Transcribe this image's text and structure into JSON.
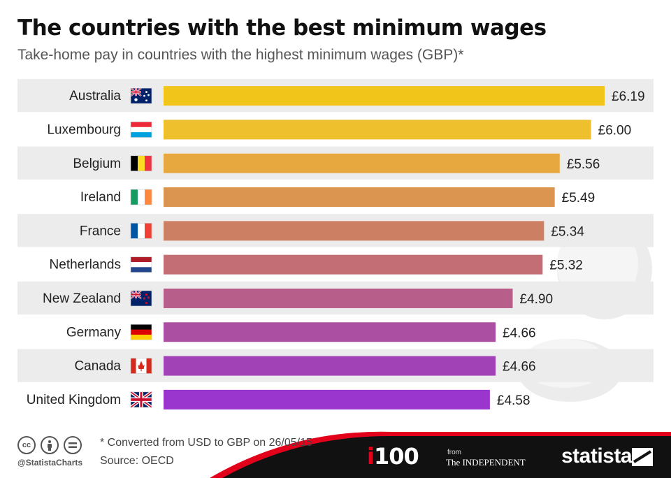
{
  "title": "The countries with the best minimum wages",
  "subtitle": "Take-home pay in countries with the highest minimum wages (GBP)*",
  "chart_data": {
    "type": "bar",
    "orientation": "horizontal",
    "categories": [
      "Australia",
      "Luxembourg",
      "Belgium",
      "Ireland",
      "France",
      "Netherlands",
      "New Zealand",
      "Germany",
      "Canada",
      "United Kingdom"
    ],
    "values": [
      6.19,
      6.0,
      5.56,
      5.49,
      5.34,
      5.32,
      4.9,
      4.66,
      4.66,
      4.58
    ],
    "value_labels": [
      "£6.19",
      "£6.00",
      "£5.56",
      "£5.49",
      "£5.34",
      "£5.32",
      "£4.90",
      "£4.66",
      "£4.66",
      "£4.58"
    ],
    "bar_colors": [
      "#f2c51b",
      "#eec02d",
      "#e7a93f",
      "#dc9550",
      "#cd7f63",
      "#c36d74",
      "#b85e8a",
      "#ab4fa3",
      "#a143b6",
      "#9a36cd"
    ],
    "flags": [
      "australia-flag",
      "luxembourg-flag",
      "belgium-flag",
      "ireland-flag",
      "france-flag",
      "netherlands-flag",
      "new-zealand-flag",
      "germany-flag",
      "canada-flag",
      "united-kingdom-flag"
    ],
    "xlim": [
      0,
      6.19
    ],
    "grid": false,
    "legend": "none"
  },
  "footer": {
    "note": "* Converted from USD to GBP on 26/05/15",
    "source": "Source: OECD",
    "handle": "@StatistaCharts",
    "cc_icons": [
      "cc",
      "by",
      "nd"
    ],
    "logo_i100_i": "i",
    "logo_i100_rest": "100",
    "from": "from",
    "independent": "The INDEPENDENT",
    "statista": "statista"
  },
  "colors": {
    "stripe": "#ececec",
    "footer_bg": "#111111",
    "accent_red": "#e2001a"
  }
}
